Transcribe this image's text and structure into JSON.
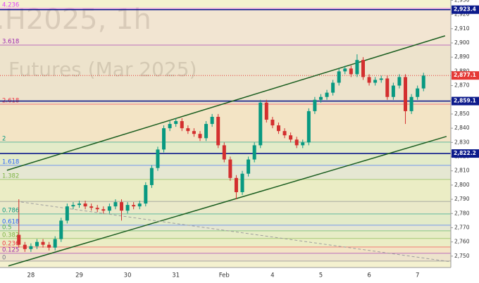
{
  "chart_data": {
    "type": "candlestick",
    "watermark": [
      ".H2025, 1h",
      "Futures (Mar 2025)"
    ],
    "x": [
      -0.25,
      -0.125,
      0,
      0.125,
      0.25,
      0.375,
      0.5,
      0.625,
      0.75,
      0.875,
      1,
      1.125,
      1.25,
      1.375,
      1.5,
      1.625,
      1.75,
      1.875,
      2,
      2.125,
      2.25,
      2.375,
      2.5,
      2.625,
      2.75,
      2.875,
      3,
      3.125,
      3.25,
      3.375,
      3.5,
      3.625,
      3.75,
      3.875,
      4,
      4.125,
      4.25,
      4.375,
      4.5,
      4.625,
      4.75,
      4.875,
      5,
      5.125,
      5.25,
      5.375,
      5.5,
      5.625,
      5.75,
      5.875,
      6,
      6.125,
      6.25,
      6.375,
      6.5,
      6.625,
      6.75,
      6.875,
      7,
      7.125,
      7.25,
      7.375,
      7.5,
      7.625,
      7.75,
      7.875,
      8,
      8.125
    ],
    "open": [
      2765,
      2758,
      2755,
      2757,
      2760,
      2758,
      2756,
      2762,
      2775,
      2785,
      2786,
      2787,
      2785,
      2784,
      2783,
      2782,
      2785,
      2788,
      2782,
      2786,
      2785,
      2787,
      2800,
      2812,
      2825,
      2840,
      2843,
      2845,
      2840,
      2838,
      2836,
      2833,
      2843,
      2848,
      2828,
      2818,
      2805,
      2795,
      2808,
      2818,
      2828,
      2858,
      2846,
      2842,
      2838,
      2835,
      2832,
      2828,
      2830,
      2852,
      2860,
      2862,
      2865,
      2872,
      2880,
      2882,
      2878,
      2888,
      2876,
      2872,
      2874,
      2875,
      2862,
      2870,
      2876,
      2852,
      2862,
      2868
    ],
    "high": [
      2790,
      2760,
      2759,
      2762,
      2762,
      2760,
      2764,
      2777,
      2787,
      2788,
      2789,
      2789,
      2787,
      2786,
      2785,
      2787,
      2790,
      2790,
      2788,
      2788,
      2789,
      2802,
      2814,
      2827,
      2842,
      2845,
      2847,
      2847,
      2842,
      2840,
      2838,
      2845,
      2850,
      2850,
      2830,
      2820,
      2807,
      2810,
      2820,
      2830,
      2860,
      2860,
      2848,
      2844,
      2840,
      2837,
      2834,
      2832,
      2854,
      2862,
      2864,
      2867,
      2874,
      2882,
      2884,
      2884,
      2892,
      2890,
      2878,
      2876,
      2877,
      2877,
      2872,
      2878,
      2878,
      2864,
      2870,
      2879
    ],
    "low": [
      2756,
      2753,
      2753,
      2755,
      2756,
      2754,
      2754,
      2760,
      2773,
      2783,
      2784,
      2783,
      2782,
      2781,
      2780,
      2780,
      2783,
      2775,
      2780,
      2783,
      2783,
      2785,
      2798,
      2810,
      2823,
      2838,
      2841,
      2838,
      2836,
      2834,
      2831,
      2831,
      2841,
      2826,
      2816,
      2803,
      2790,
      2793,
      2806,
      2816,
      2826,
      2844,
      2840,
      2836,
      2833,
      2830,
      2826,
      2826,
      2828,
      2850,
      2858,
      2860,
      2863,
      2870,
      2878,
      2876,
      2876,
      2874,
      2870,
      2870,
      2872,
      2860,
      2860,
      2868,
      2843,
      2850,
      2860,
      2866
    ],
    "close": [
      2758,
      2755,
      2757,
      2760,
      2758,
      2756,
      2762,
      2775,
      2785,
      2786,
      2787,
      2785,
      2784,
      2783,
      2782,
      2785,
      2788,
      2782,
      2786,
      2785,
      2787,
      2800,
      2812,
      2825,
      2840,
      2843,
      2845,
      2840,
      2838,
      2836,
      2833,
      2843,
      2848,
      2828,
      2818,
      2805,
      2795,
      2808,
      2818,
      2828,
      2858,
      2846,
      2842,
      2838,
      2835,
      2832,
      2828,
      2830,
      2852,
      2860,
      2862,
      2865,
      2872,
      2880,
      2882,
      2878,
      2888,
      2876,
      2872,
      2874,
      2875,
      2862,
      2870,
      2876,
      2852,
      2862,
      2868,
      2877
    ],
    "up_color": "#089981",
    "down_color": "#d32f2f",
    "xlim": [
      -0.64,
      8.69
    ],
    "xticks": [
      {
        "value": 0,
        "label": "28"
      },
      {
        "value": 1,
        "label": "29"
      },
      {
        "value": 2,
        "label": "30"
      },
      {
        "value": 3,
        "label": "31"
      },
      {
        "value": 4,
        "label": "Feb"
      },
      {
        "value": 5,
        "label": "4"
      },
      {
        "value": 6,
        "label": "5"
      },
      {
        "value": 7,
        "label": "6"
      },
      {
        "value": 8,
        "label": "7"
      }
    ],
    "ylim": [
      2742,
      2930.2
    ],
    "yticks": [
      {
        "value": 2750,
        "label": "2,750"
      },
      {
        "value": 2760,
        "label": "2,760"
      },
      {
        "value": 2770,
        "label": "2,770"
      },
      {
        "value": 2780,
        "label": "2,780"
      },
      {
        "value": 2790,
        "label": "2,790"
      },
      {
        "value": 2800,
        "label": "2,800"
      },
      {
        "value": 2810,
        "label": "2,810"
      },
      {
        "value": 2820,
        "label": "2,820"
      },
      {
        "value": 2830,
        "label": "2,830"
      },
      {
        "value": 2840,
        "label": "2,840"
      },
      {
        "value": 2850,
        "label": "2,850"
      },
      {
        "value": 2860,
        "label": "2,860"
      },
      {
        "value": 2870,
        "label": "2,870"
      },
      {
        "value": 2880,
        "label": "2,880"
      },
      {
        "value": 2890,
        "label": "2,890"
      },
      {
        "value": 2900,
        "label": "2,900"
      },
      {
        "value": 2910,
        "label": "2,910"
      },
      {
        "value": 2920,
        "label": "2,920"
      },
      {
        "value": 2930,
        "label": "2,930"
      }
    ],
    "fib_levels": [
      {
        "label": "4.236",
        "value": 2924.3,
        "color": "#e040fb"
      },
      {
        "label": "3.618",
        "value": 2898.5,
        "color": "#9c27b0"
      },
      {
        "label": "2.618",
        "value": 2856.9,
        "color": "#f23645"
      },
      {
        "label": "2",
        "value": 2830.2,
        "color": "#089981"
      },
      {
        "label": "1.618",
        "value": 2813.9,
        "color": "#2962ff"
      },
      {
        "label": "1.382",
        "value": 2804,
        "color": "#7cb342"
      },
      {
        "label": null,
        "value": 2788.5,
        "color": "#787b86"
      },
      {
        "label": "0.786",
        "value": 2779.7,
        "color": "#089981"
      },
      {
        "label": "0.618",
        "value": 2771.8,
        "color": "#2962ff"
      },
      {
        "label": "0.5",
        "value": 2767.8,
        "color": "#4caf50"
      },
      {
        "label": "0.382",
        "value": 2762.4,
        "color": "#7cb342"
      },
      {
        "label": "0.236",
        "value": 2756.4,
        "color": "#f23645"
      },
      {
        "label": "0.125",
        "value": 2752,
        "color": "#9c27b0"
      },
      {
        "label": "0",
        "value": 2746.5,
        "color": "#787b86"
      }
    ],
    "price_lines": [
      {
        "label": "2,923.4",
        "value": 2923.4,
        "color": "#0d1b8c"
      },
      {
        "label": "2,877.1",
        "value": 2877.1,
        "color": "#e53935"
      },
      {
        "label": "2,859.1",
        "value": 2859.1,
        "color": "#0d1b8c"
      },
      {
        "label": "2,822.2",
        "value": 2822.2,
        "color": "#0d1b8c"
      }
    ],
    "trend_lines": [
      {
        "x": [
          -0.496,
          8.571
        ],
        "y": [
          2810.4,
          2905
        ],
        "color": "#1b5e20"
      },
      {
        "x": [
          -0.466,
          8.601
        ],
        "y": [
          2743.1,
          2834.2
        ],
        "color": "#1b5e20"
      },
      {
        "x": [
          -0.204,
          8.69
        ],
        "y": [
          2788.1,
          2746
        ],
        "color": "#9e9e9e"
      }
    ]
  }
}
